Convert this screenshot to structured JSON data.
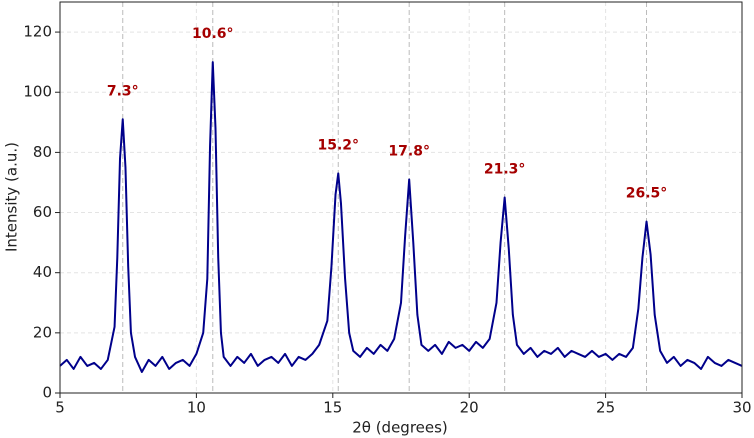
{
  "chart_data": {
    "type": "line",
    "xlabel": "2θ (degrees)",
    "ylabel": "Intensity (a.u.)",
    "xlim": [
      5,
      30
    ],
    "xticks": [
      5,
      10,
      15,
      20,
      25,
      30
    ],
    "ylim": [
      0,
      130
    ],
    "yticks": [
      0,
      20,
      40,
      60,
      80,
      100,
      120
    ],
    "grid": true,
    "series": [
      {
        "color": "#00008b",
        "x": [
          5,
          5.25,
          5.5,
          5.75,
          6,
          6.25,
          6.5,
          6.75,
          7.0,
          7.1,
          7.2,
          7.3,
          7.4,
          7.5,
          7.6,
          7.75,
          8,
          8.25,
          8.5,
          8.75,
          9,
          9.25,
          9.5,
          9.75,
          10,
          10.25,
          10.4,
          10.5,
          10.6,
          10.7,
          10.8,
          10.9,
          11,
          11.25,
          11.5,
          11.75,
          12,
          12.25,
          12.5,
          12.75,
          13,
          13.25,
          13.5,
          13.75,
          14,
          14.25,
          14.5,
          14.8,
          14.95,
          15.1,
          15.2,
          15.3,
          15.45,
          15.6,
          15.75,
          16,
          16.25,
          16.5,
          16.75,
          17,
          17.25,
          17.5,
          17.65,
          17.8,
          17.95,
          18.1,
          18.25,
          18.5,
          18.75,
          19,
          19.25,
          19.5,
          19.75,
          20,
          20.25,
          20.5,
          20.75,
          21.0,
          21.15,
          21.3,
          21.45,
          21.6,
          21.75,
          22,
          22.25,
          22.5,
          22.75,
          23,
          23.25,
          23.5,
          23.75,
          24,
          24.25,
          24.5,
          24.75,
          25,
          25.25,
          25.5,
          25.75,
          26,
          26.2,
          26.35,
          26.5,
          26.65,
          26.8,
          27,
          27.25,
          27.5,
          27.75,
          28,
          28.25,
          28.5,
          28.75,
          29,
          29.25,
          29.5,
          29.75,
          30
        ],
        "values": [
          9,
          11,
          8,
          12,
          9,
          10,
          8,
          11,
          22,
          45,
          78,
          91,
          75,
          42,
          20,
          12,
          7,
          11,
          9,
          12,
          8,
          10,
          11,
          9,
          13,
          20,
          38,
          82,
          110,
          88,
          45,
          20,
          12,
          9,
          12,
          10,
          13,
          9,
          11,
          12,
          10,
          13,
          9,
          12,
          11,
          13,
          16,
          24,
          42,
          66,
          73,
          63,
          38,
          20,
          14,
          12,
          15,
          13,
          16,
          14,
          18,
          30,
          52,
          71,
          50,
          26,
          16,
          14,
          16,
          13,
          17,
          15,
          16,
          14,
          17,
          15,
          18,
          30,
          50,
          65,
          48,
          26,
          16,
          13,
          15,
          12,
          14,
          13,
          15,
          12,
          14,
          13,
          12,
          14,
          12,
          13,
          11,
          13,
          12,
          15,
          28,
          45,
          57,
          46,
          26,
          14,
          10,
          12,
          9,
          11,
          10,
          8,
          12,
          10,
          9,
          11,
          10,
          9
        ]
      }
    ],
    "annotations": [
      {
        "x": 7.3,
        "label": "7.3°"
      },
      {
        "x": 10.6,
        "label": "10.6°"
      },
      {
        "x": 15.2,
        "label": "15.2°"
      },
      {
        "x": 17.8,
        "label": "17.8°"
      },
      {
        "x": 21.3,
        "label": "21.3°"
      },
      {
        "x": 26.5,
        "label": "26.5°"
      }
    ],
    "annotation_color": "#a50000"
  }
}
